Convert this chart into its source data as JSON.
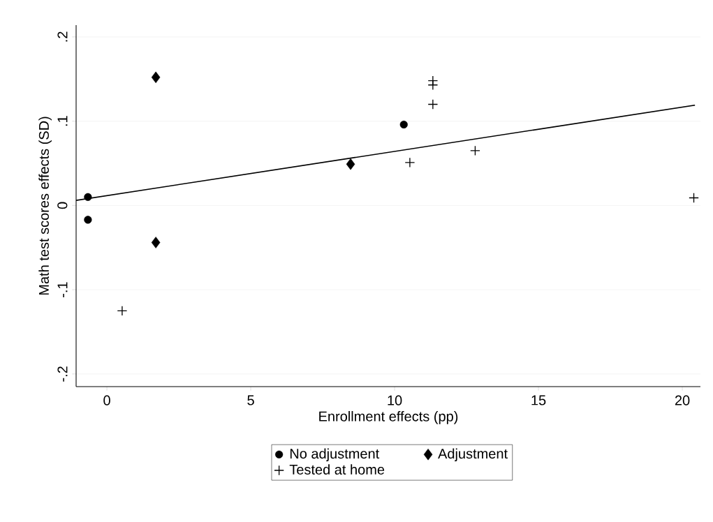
{
  "chart_data": {
    "type": "scatter",
    "xlabel": "Enrollment effects (pp)",
    "ylabel": "Math test scores effects (SD)",
    "xlim": [
      -1.07,
      20.63
    ],
    "ylim": [
      -0.215,
      0.214
    ],
    "xticks": [
      0,
      5,
      10,
      15,
      20
    ],
    "yticks": [
      {
        "value": -0.2,
        "label": "-.2"
      },
      {
        "value": -0.1,
        "label": "-.1"
      },
      0,
      {
        "value": 0.1,
        "label": ".1"
      },
      {
        "value": 0.2,
        "label": ".2"
      }
    ],
    "grid": "y",
    "legend": "bottom",
    "series": [
      {
        "name": "No adjustment",
        "color": "#000000",
        "marker": "circle",
        "x": [
          -0.66,
          -0.66,
          10.32
        ],
        "values": [
          0.01,
          -0.017,
          0.096
        ]
      },
      {
        "name": "Adjustment",
        "color": "#000000",
        "marker": "diamond",
        "x": [
          1.7,
          1.7,
          8.47
        ],
        "values": [
          0.152,
          -0.044,
          0.049
        ]
      },
      {
        "name": "Tested at home",
        "color": "#000000",
        "marker": "cross",
        "x": [
          0.53,
          10.53,
          11.33,
          11.33,
          11.33,
          12.8,
          20.4
        ],
        "values": [
          -0.125,
          0.051,
          0.148,
          0.143,
          0.12,
          0.065,
          0.009
        ]
      },
      {
        "type": "line",
        "color": "#000000",
        "marker": "none",
        "line_style": "solid",
        "x": [
          -1.07,
          20.44
        ],
        "values": [
          0.006,
          0.119
        ]
      }
    ]
  }
}
